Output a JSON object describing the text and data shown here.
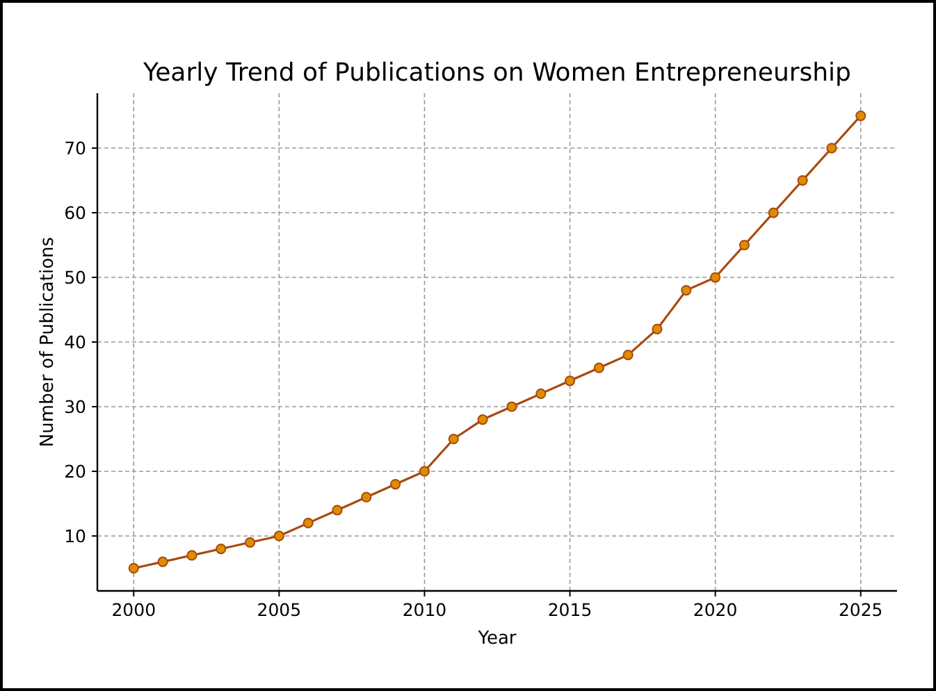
{
  "chart_data": {
    "type": "line",
    "title": "Yearly Trend of Publications on Women Entrepreneurship",
    "xlabel": "Year",
    "ylabel": "Number of Publications",
    "x": [
      2000,
      2001,
      2002,
      2003,
      2004,
      2005,
      2006,
      2007,
      2008,
      2009,
      2010,
      2011,
      2012,
      2013,
      2014,
      2015,
      2016,
      2017,
      2018,
      2019,
      2020,
      2021,
      2022,
      2023,
      2024,
      2025
    ],
    "series": [
      {
        "color": "#a8490f",
        "values": [
          5,
          6,
          7,
          8,
          9,
          10,
          12,
          14,
          16,
          18,
          20,
          25,
          28,
          30,
          32,
          34,
          36,
          38,
          42,
          48,
          50,
          55,
          60,
          65,
          70,
          75
        ]
      }
    ],
    "xlim": [
      1998.75,
      2026.25
    ],
    "xticks": [
      2000,
      2005,
      2010,
      2015,
      2020,
      2025
    ],
    "ylim": [
      1.5,
      78.5
    ],
    "yticks": [
      10,
      20,
      30,
      40,
      50,
      60,
      70
    ],
    "grid": true,
    "marker": "circle",
    "line_style": "solid"
  }
}
